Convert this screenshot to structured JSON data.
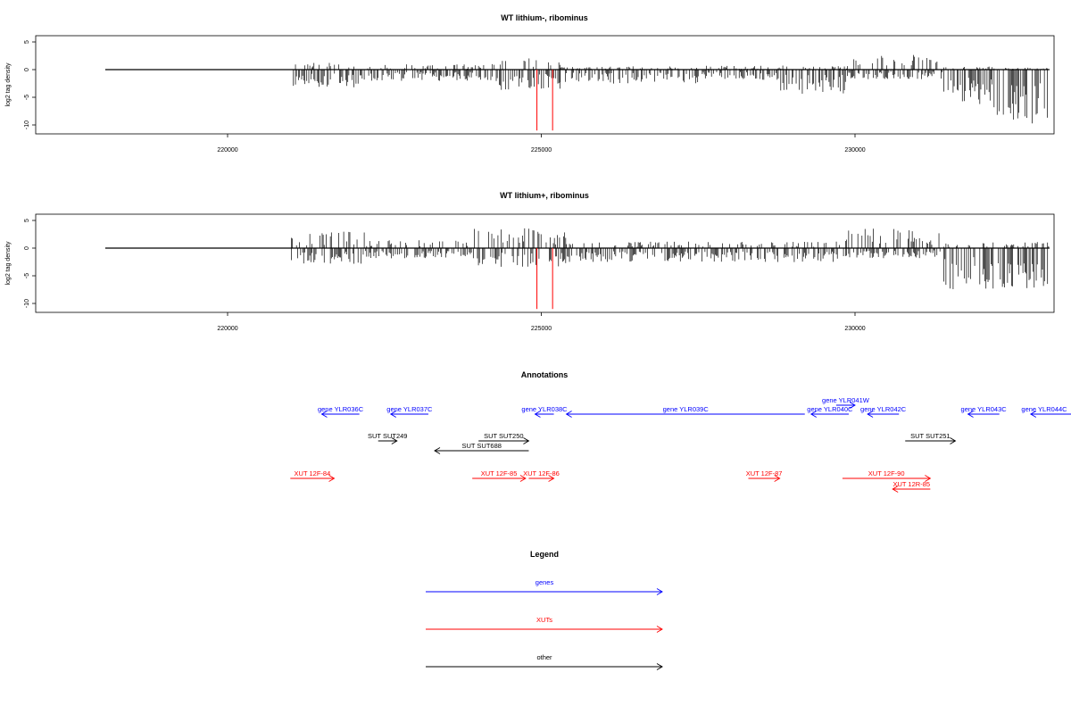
{
  "colors": {
    "genes": "#0000ff",
    "xuts": "#ff0000",
    "other": "#000000",
    "signal": "#000000",
    "highlight": "#ff0000"
  },
  "chart_data": [
    {
      "type": "bar",
      "title": "WT lithium-, ribominus",
      "ylabel": "log2 tag density",
      "xticks": [
        220000,
        225000,
        230000
      ],
      "yticks": [
        5,
        0,
        -5,
        -10
      ],
      "xlim": [
        217500,
        232700
      ],
      "ylim": [
        -11,
        6
      ],
      "track_range": [
        218050,
        233100
      ],
      "regions": [
        {
          "start": 221000,
          "end": 222200,
          "pos": 1.2,
          "neg": -2.8
        },
        {
          "start": 222200,
          "end": 224200,
          "pos": 0.8,
          "neg": -1.8
        },
        {
          "start": 224200,
          "end": 225300,
          "pos": 1.8,
          "neg": -3.2
        },
        {
          "start": 225300,
          "end": 227500,
          "pos": 0.5,
          "neg": -2.2
        },
        {
          "start": 227500,
          "end": 228800,
          "pos": 0.6,
          "neg": -1.6
        },
        {
          "start": 228800,
          "end": 229900,
          "pos": 0.6,
          "neg": -3.8
        },
        {
          "start": 229900,
          "end": 231400,
          "pos": 2.5,
          "neg": -1.5
        },
        {
          "start": 231400,
          "end": 232200,
          "pos": 0.5,
          "neg": -5.5
        },
        {
          "start": 232200,
          "end": 233100,
          "pos": 0.3,
          "neg": -8.5
        }
      ],
      "highlights": [
        {
          "x": 224930,
          "y": -11
        },
        {
          "x": 225180,
          "y": -11
        }
      ]
    },
    {
      "type": "bar",
      "title": "WT lithium+, ribominus",
      "ylabel": "log2 tag density",
      "xticks": [
        220000,
        225000,
        230000
      ],
      "yticks": [
        5,
        0,
        -5,
        -10
      ],
      "xlim": [
        217500,
        232700
      ],
      "ylim": [
        -11,
        6
      ],
      "track_range": [
        218050,
        233100
      ],
      "regions": [
        {
          "start": 221000,
          "end": 222200,
          "pos": 2.5,
          "neg": -2.5
        },
        {
          "start": 222200,
          "end": 223900,
          "pos": 1.2,
          "neg": -1.6
        },
        {
          "start": 223900,
          "end": 225400,
          "pos": 3.0,
          "neg": -3.0
        },
        {
          "start": 225400,
          "end": 229800,
          "pos": 1.0,
          "neg": -2.2
        },
        {
          "start": 229800,
          "end": 231400,
          "pos": 3.0,
          "neg": -1.6
        },
        {
          "start": 231400,
          "end": 233100,
          "pos": 1.0,
          "neg": -6.5
        }
      ],
      "highlights": [
        {
          "x": 224930,
          "y": -11
        },
        {
          "x": 225180,
          "y": -11
        }
      ]
    }
  ],
  "annotations": {
    "title": "Annotations",
    "features": [
      {
        "label": "gene YLR036C",
        "cat": "genes",
        "start": 221500,
        "end": 222100,
        "strand": "-",
        "row": 0
      },
      {
        "label": "gene YLR037C",
        "cat": "genes",
        "start": 222600,
        "end": 223200,
        "strand": "-",
        "row": 0
      },
      {
        "label": "gene YLR038C",
        "cat": "genes",
        "start": 224900,
        "end": 225200,
        "strand": "-",
        "row": 0
      },
      {
        "label": "gene YLR039C",
        "cat": "genes",
        "start": 225400,
        "end": 229200,
        "strand": "-",
        "row": 0
      },
      {
        "label": "gene YLR040C",
        "cat": "genes",
        "start": 229300,
        "end": 229900,
        "strand": "-",
        "row": 0
      },
      {
        "label": "gene YLR041W",
        "cat": "genes",
        "start": 229700,
        "end": 230000,
        "strand": "+",
        "row": -1
      },
      {
        "label": "gene YLR042C",
        "cat": "genes",
        "start": 230200,
        "end": 230700,
        "strand": "-",
        "row": 0
      },
      {
        "label": "gene YLR043C",
        "cat": "genes",
        "start": 231800,
        "end": 232300,
        "strand": "-",
        "row": 0
      },
      {
        "label": "gene YLR044C",
        "cat": "genes",
        "start": 232800,
        "end": 235000,
        "strand": "-",
        "row": 0
      },
      {
        "label": "SUT SUT249",
        "cat": "other",
        "start": 222400,
        "end": 222700,
        "strand": "+",
        "row": 1
      },
      {
        "label": "SUT SUT250",
        "cat": "other",
        "start": 224000,
        "end": 224800,
        "strand": "+",
        "row": 1
      },
      {
        "label": "SUT SUT688",
        "cat": "other",
        "start": 223300,
        "end": 224800,
        "strand": "-",
        "row": 2
      },
      {
        "label": "SUT SUT251",
        "cat": "other",
        "start": 230800,
        "end": 231600,
        "strand": "+",
        "row": 1
      },
      {
        "label": "XUT 12F-84",
        "cat": "xuts",
        "start": 221000,
        "end": 221700,
        "strand": "+",
        "row": 3
      },
      {
        "label": "XUT 12F-85",
        "cat": "xuts",
        "start": 223900,
        "end": 224750,
        "strand": "+",
        "row": 3
      },
      {
        "label": "XUT 12F-86",
        "cat": "xuts",
        "start": 224800,
        "end": 225200,
        "strand": "+",
        "row": 3
      },
      {
        "label": "XUT 12F-87",
        "cat": "xuts",
        "start": 228300,
        "end": 228800,
        "strand": "+",
        "row": 3
      },
      {
        "label": "XUT 12F-90",
        "cat": "xuts",
        "start": 229800,
        "end": 231200,
        "strand": "+",
        "row": 3
      },
      {
        "label": "XUT 12R-85",
        "cat": "xuts",
        "start": 230600,
        "end": 231200,
        "strand": "-",
        "row": 4
      }
    ]
  },
  "legend": {
    "title": "Legend",
    "items": [
      {
        "label": "genes",
        "cat": "genes"
      },
      {
        "label": "XUTs",
        "cat": "xuts"
      },
      {
        "label": "other",
        "cat": "other"
      }
    ]
  }
}
